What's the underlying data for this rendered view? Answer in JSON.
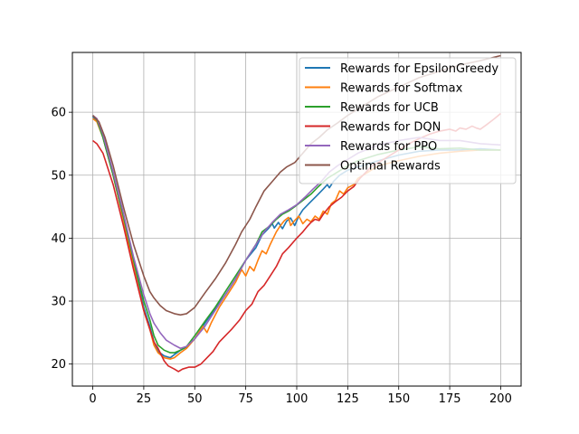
{
  "chart_data": {
    "type": "line",
    "title": "",
    "xlabel": "",
    "ylabel": "",
    "xlim": [
      -10,
      210
    ],
    "ylim": [
      16.5,
      69.5
    ],
    "xticks": [
      0,
      25,
      50,
      75,
      100,
      125,
      150,
      175,
      200
    ],
    "yticks": [
      20,
      30,
      40,
      50,
      60
    ],
    "grid": true,
    "legend_position": "top-right",
    "series": [
      {
        "name": "Rewards for EpsilonGreedy",
        "color": "#1f77b4",
        "points": [
          [
            0,
            59.3
          ],
          [
            2,
            58.7
          ],
          [
            5,
            56.0
          ],
          [
            10,
            50.0
          ],
          [
            15,
            43.0
          ],
          [
            20,
            36.0
          ],
          [
            25,
            29.0
          ],
          [
            28,
            26.0
          ],
          [
            30,
            23.5
          ],
          [
            32,
            22.0
          ],
          [
            35,
            21.3
          ],
          [
            38,
            21.0
          ],
          [
            40,
            21.5
          ],
          [
            43,
            22.2
          ],
          [
            46,
            22.7
          ],
          [
            50,
            24.0
          ],
          [
            55,
            26.5
          ],
          [
            60,
            28.8
          ],
          [
            65,
            31.0
          ],
          [
            70,
            33.5
          ],
          [
            75,
            36.5
          ],
          [
            80,
            38.5
          ],
          [
            83,
            40.5
          ],
          [
            86,
            41.5
          ],
          [
            88,
            42.3
          ],
          [
            89,
            41.6
          ],
          [
            91,
            42.5
          ],
          [
            93,
            41.5
          ],
          [
            95,
            42.7
          ],
          [
            97,
            43.2
          ],
          [
            99,
            42.0
          ],
          [
            101,
            43.5
          ],
          [
            103,
            44.5
          ],
          [
            106,
            45.5
          ],
          [
            110,
            46.8
          ],
          [
            113,
            47.8
          ],
          [
            115,
            48.5
          ],
          [
            116,
            48.0
          ],
          [
            118,
            49.0
          ],
          [
            121,
            50.0
          ],
          [
            125,
            50.8
          ],
          [
            130,
            51.3
          ],
          [
            140,
            52.3
          ],
          [
            150,
            53.2
          ],
          [
            160,
            53.8
          ],
          [
            170,
            54.0
          ],
          [
            180,
            54.0
          ],
          [
            190,
            54.2
          ],
          [
            200,
            54.0
          ]
        ]
      },
      {
        "name": "Rewards for Softmax",
        "color": "#ff7f0e",
        "points": [
          [
            0,
            59.0
          ],
          [
            2,
            58.5
          ],
          [
            5,
            56.0
          ],
          [
            10,
            50.0
          ],
          [
            15,
            43.0
          ],
          [
            20,
            35.5
          ],
          [
            25,
            28.5
          ],
          [
            28,
            25.5
          ],
          [
            30,
            23.0
          ],
          [
            32,
            21.8
          ],
          [
            35,
            21.0
          ],
          [
            38,
            20.8
          ],
          [
            40,
            21.0
          ],
          [
            43,
            21.8
          ],
          [
            46,
            22.5
          ],
          [
            50,
            24.0
          ],
          [
            54,
            26.0
          ],
          [
            56,
            25.0
          ],
          [
            58,
            26.5
          ],
          [
            62,
            29.0
          ],
          [
            66,
            31.0
          ],
          [
            70,
            33.0
          ],
          [
            73,
            35.0
          ],
          [
            75,
            34.0
          ],
          [
            77,
            35.5
          ],
          [
            79,
            34.8
          ],
          [
            81,
            36.5
          ],
          [
            83,
            38.0
          ],
          [
            85,
            37.5
          ],
          [
            87,
            39.0
          ],
          [
            90,
            41.0
          ],
          [
            92,
            42.0
          ],
          [
            94,
            42.8
          ],
          [
            96,
            43.3
          ],
          [
            97,
            42.0
          ],
          [
            99,
            42.8
          ],
          [
            101,
            43.5
          ],
          [
            103,
            42.3
          ],
          [
            105,
            43.0
          ],
          [
            107,
            42.6
          ],
          [
            109,
            43.5
          ],
          [
            111,
            43.0
          ],
          [
            113,
            44.3
          ],
          [
            115,
            43.8
          ],
          [
            117,
            45.5
          ],
          [
            119,
            46.0
          ],
          [
            121,
            47.5
          ],
          [
            123,
            47.0
          ],
          [
            125,
            48.0
          ],
          [
            128,
            48.5
          ],
          [
            130,
            49.5
          ],
          [
            135,
            50.5
          ],
          [
            140,
            51.5
          ],
          [
            150,
            52.3
          ],
          [
            160,
            53.0
          ],
          [
            170,
            53.5
          ],
          [
            180,
            53.8
          ],
          [
            190,
            54.0
          ],
          [
            200,
            54.0
          ]
        ]
      },
      {
        "name": "Rewards for UCB",
        "color": "#2ca02c",
        "points": [
          [
            0,
            59.5
          ],
          [
            2,
            58.8
          ],
          [
            5,
            56.0
          ],
          [
            10,
            50.0
          ],
          [
            15,
            43.5
          ],
          [
            20,
            36.5
          ],
          [
            25,
            30.0
          ],
          [
            28,
            27.0
          ],
          [
            30,
            24.5
          ],
          [
            32,
            23.0
          ],
          [
            35,
            22.2
          ],
          [
            38,
            21.8
          ],
          [
            40,
            21.8
          ],
          [
            43,
            22.2
          ],
          [
            46,
            22.8
          ],
          [
            50,
            24.5
          ],
          [
            55,
            26.8
          ],
          [
            60,
            29.0
          ],
          [
            65,
            31.5
          ],
          [
            70,
            34.0
          ],
          [
            75,
            36.5
          ],
          [
            80,
            39.0
          ],
          [
            83,
            41.0
          ],
          [
            87,
            42.0
          ],
          [
            90,
            43.0
          ],
          [
            93,
            43.8
          ],
          [
            96,
            44.3
          ],
          [
            99,
            45.0
          ],
          [
            103,
            46.0
          ],
          [
            107,
            47.0
          ],
          [
            110,
            48.0
          ],
          [
            115,
            49.5
          ],
          [
            120,
            50.5
          ],
          [
            125,
            51.5
          ],
          [
            130,
            52.3
          ],
          [
            140,
            53.3
          ],
          [
            150,
            54.0
          ],
          [
            160,
            54.5
          ],
          [
            170,
            54.2
          ],
          [
            180,
            54.3
          ],
          [
            190,
            54.0
          ],
          [
            200,
            54.0
          ]
        ]
      },
      {
        "name": "Rewards for DQN",
        "color": "#d62728",
        "points": [
          [
            0,
            55.5
          ],
          [
            2,
            55.0
          ],
          [
            5,
            53.5
          ],
          [
            10,
            48.5
          ],
          [
            15,
            42.0
          ],
          [
            20,
            35.0
          ],
          [
            25,
            28.5
          ],
          [
            28,
            25.5
          ],
          [
            30,
            23.5
          ],
          [
            32,
            22.5
          ],
          [
            35,
            20.5
          ],
          [
            37,
            19.7
          ],
          [
            40,
            19.2
          ],
          [
            42,
            18.8
          ],
          [
            44,
            19.2
          ],
          [
            47,
            19.5
          ],
          [
            50,
            19.5
          ],
          [
            53,
            20.0
          ],
          [
            56,
            21.0
          ],
          [
            59,
            22.0
          ],
          [
            62,
            23.5
          ],
          [
            65,
            24.5
          ],
          [
            68,
            25.5
          ],
          [
            72,
            27.0
          ],
          [
            75,
            28.5
          ],
          [
            78,
            29.5
          ],
          [
            81,
            31.5
          ],
          [
            84,
            32.5
          ],
          [
            87,
            34.0
          ],
          [
            90,
            35.5
          ],
          [
            93,
            37.5
          ],
          [
            96,
            38.5
          ],
          [
            100,
            40.0
          ],
          [
            103,
            41.0
          ],
          [
            105,
            41.8
          ],
          [
            107,
            42.5
          ],
          [
            109,
            43.0
          ],
          [
            111,
            42.8
          ],
          [
            113,
            43.8
          ],
          [
            116,
            45.0
          ],
          [
            119,
            45.8
          ],
          [
            122,
            46.5
          ],
          [
            125,
            47.5
          ],
          [
            128,
            48.2
          ],
          [
            131,
            49.5
          ],
          [
            134,
            50.5
          ],
          [
            137,
            51.5
          ],
          [
            140,
            52.0
          ],
          [
            145,
            53.0
          ],
          [
            150,
            54.0
          ],
          [
            155,
            55.0
          ],
          [
            160,
            55.8
          ],
          [
            165,
            56.5
          ],
          [
            170,
            57.0
          ],
          [
            175,
            57.3
          ],
          [
            178,
            57.0
          ],
          [
            180,
            57.5
          ],
          [
            183,
            57.3
          ],
          [
            186,
            57.8
          ],
          [
            188,
            57.5
          ],
          [
            190,
            57.3
          ],
          [
            193,
            58.0
          ],
          [
            195,
            58.5
          ],
          [
            197,
            59.0
          ],
          [
            200,
            59.8
          ]
        ]
      },
      {
        "name": "Rewards for PPO",
        "color": "#9467bd",
        "points": [
          [
            0,
            59.5
          ],
          [
            2,
            59.0
          ],
          [
            5,
            56.5
          ],
          [
            10,
            50.5
          ],
          [
            15,
            44.0
          ],
          [
            20,
            37.0
          ],
          [
            25,
            31.0
          ],
          [
            28,
            28.0
          ],
          [
            30,
            26.5
          ],
          [
            33,
            25.0
          ],
          [
            36,
            23.8
          ],
          [
            40,
            23.0
          ],
          [
            43,
            22.5
          ],
          [
            46,
            22.8
          ],
          [
            50,
            24.0
          ],
          [
            55,
            26.0
          ],
          [
            60,
            28.5
          ],
          [
            65,
            31.0
          ],
          [
            70,
            33.5
          ],
          [
            75,
            36.5
          ],
          [
            80,
            39.0
          ],
          [
            84,
            41.0
          ],
          [
            88,
            42.5
          ],
          [
            92,
            43.8
          ],
          [
            96,
            44.5
          ],
          [
            100,
            45.3
          ],
          [
            104,
            46.5
          ],
          [
            108,
            47.8
          ],
          [
            112,
            49.0
          ],
          [
            116,
            50.5
          ],
          [
            120,
            51.5
          ],
          [
            125,
            52.5
          ],
          [
            130,
            53.5
          ],
          [
            140,
            54.8
          ],
          [
            150,
            55.5
          ],
          [
            160,
            56.0
          ],
          [
            170,
            55.5
          ],
          [
            180,
            55.5
          ],
          [
            190,
            55.0
          ],
          [
            200,
            54.8
          ]
        ]
      },
      {
        "name": "Optimal Rewards",
        "color": "#8c564b",
        "points": [
          [
            0,
            59.5
          ],
          [
            3,
            58.5
          ],
          [
            6,
            56.0
          ],
          [
            10,
            51.5
          ],
          [
            15,
            45.0
          ],
          [
            20,
            39.0
          ],
          [
            25,
            34.0
          ],
          [
            28,
            31.5
          ],
          [
            30,
            30.5
          ],
          [
            33,
            29.3
          ],
          [
            36,
            28.5
          ],
          [
            40,
            28.0
          ],
          [
            43,
            27.8
          ],
          [
            46,
            28.0
          ],
          [
            50,
            29.0
          ],
          [
            55,
            31.3
          ],
          [
            60,
            33.5
          ],
          [
            65,
            36.0
          ],
          [
            70,
            39.0
          ],
          [
            73,
            41.0
          ],
          [
            77,
            43.0
          ],
          [
            80,
            45.0
          ],
          [
            84,
            47.5
          ],
          [
            88,
            49.0
          ],
          [
            92,
            50.5
          ],
          [
            95,
            51.3
          ],
          [
            99,
            52.0
          ],
          [
            103,
            53.5
          ],
          [
            107,
            55.0
          ],
          [
            111,
            56.0
          ],
          [
            115,
            57.2
          ],
          [
            120,
            58.3
          ],
          [
            125,
            59.5
          ],
          [
            130,
            60.5
          ],
          [
            135,
            61.5
          ],
          [
            140,
            62.5
          ],
          [
            150,
            64.0
          ],
          [
            160,
            65.5
          ],
          [
            170,
            66.5
          ],
          [
            180,
            67.5
          ],
          [
            190,
            68.2
          ],
          [
            200,
            69.0
          ]
        ]
      }
    ]
  }
}
